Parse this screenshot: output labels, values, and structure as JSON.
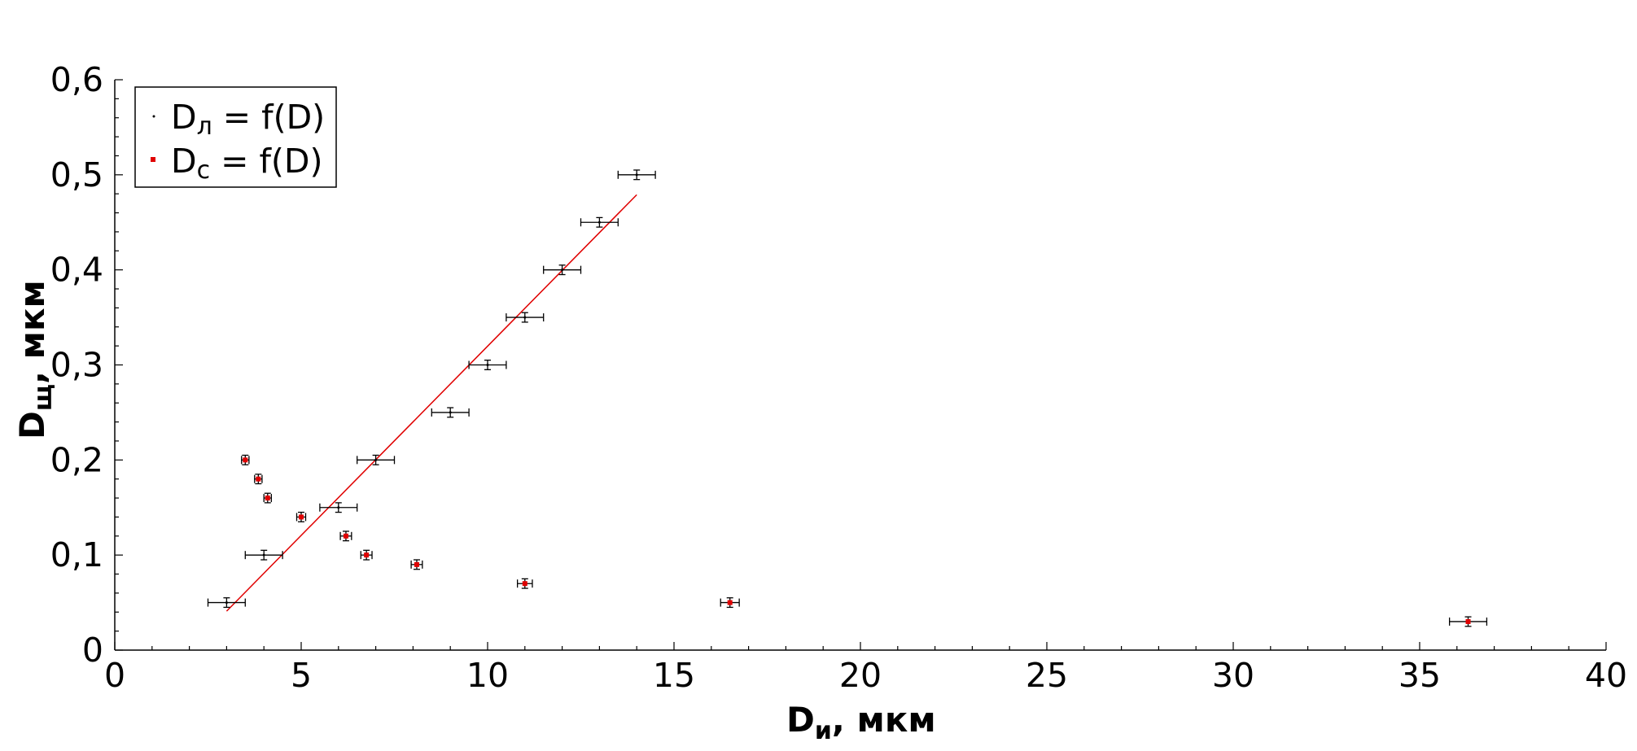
{
  "chart_data": {
    "type": "scatter",
    "xlabel": {
      "main": "D",
      "sub": "и",
      "rest": ", мкм"
    },
    "ylabel": {
      "main": "D",
      "sub": "щ",
      "rest": ", мкм"
    },
    "xlim": [
      0,
      40
    ],
    "ylim": [
      0,
      0.6
    ],
    "x_ticks": [
      0,
      5,
      10,
      15,
      20,
      25,
      30,
      35,
      40
    ],
    "x_tick_labels": [
      "0",
      "5",
      "10",
      "15",
      "20",
      "25",
      "30",
      "35",
      "40"
    ],
    "y_ticks": [
      0,
      0.1,
      0.2,
      0.3,
      0.4,
      0.5,
      0.6
    ],
    "y_tick_labels": [
      "0",
      "0,1",
      "0,2",
      "0,3",
      "0,4",
      "0,5",
      "0,6"
    ],
    "grid": false,
    "legend_position": "top-left",
    "series": [
      {
        "name": "Dл = f(D)",
        "legend": {
          "main": "D",
          "sub": "л",
          "rest": " = f(D)"
        },
        "color": "#000000",
        "points": [
          {
            "x": 3.0,
            "y": 0.05,
            "xerr": 0.5,
            "yerr": 0.005
          },
          {
            "x": 4.0,
            "y": 0.1,
            "xerr": 0.5,
            "yerr": 0.005
          },
          {
            "x": 6.0,
            "y": 0.15,
            "xerr": 0.5,
            "yerr": 0.005
          },
          {
            "x": 7.0,
            "y": 0.2,
            "xerr": 0.5,
            "yerr": 0.005
          },
          {
            "x": 9.0,
            "y": 0.25,
            "xerr": 0.5,
            "yerr": 0.005
          },
          {
            "x": 10.0,
            "y": 0.3,
            "xerr": 0.5,
            "yerr": 0.005
          },
          {
            "x": 11.0,
            "y": 0.35,
            "xerr": 0.5,
            "yerr": 0.005
          },
          {
            "x": 12.0,
            "y": 0.4,
            "xerr": 0.5,
            "yerr": 0.005
          },
          {
            "x": 13.0,
            "y": 0.45,
            "xerr": 0.5,
            "yerr": 0.005
          },
          {
            "x": 14.0,
            "y": 0.5,
            "xerr": 0.5,
            "yerr": 0.005
          }
        ]
      },
      {
        "name": "Dc = f(D)",
        "legend": {
          "main": "D",
          "sub": "c",
          "rest": " = f(D)"
        },
        "color": "#e00000",
        "points": [
          {
            "x": 3.5,
            "y": 0.2,
            "xerr": 0.1,
            "yerr": 0.005
          },
          {
            "x": 3.85,
            "y": 0.18,
            "xerr": 0.1,
            "yerr": 0.005
          },
          {
            "x": 4.1,
            "y": 0.16,
            "xerr": 0.1,
            "yerr": 0.005
          },
          {
            "x": 5.0,
            "y": 0.14,
            "xerr": 0.12,
            "yerr": 0.005
          },
          {
            "x": 6.2,
            "y": 0.12,
            "xerr": 0.15,
            "yerr": 0.005
          },
          {
            "x": 6.75,
            "y": 0.1,
            "xerr": 0.15,
            "yerr": 0.005
          },
          {
            "x": 8.1,
            "y": 0.09,
            "xerr": 0.15,
            "yerr": 0.005
          },
          {
            "x": 11.0,
            "y": 0.07,
            "xerr": 0.2,
            "yerr": 0.005
          },
          {
            "x": 16.5,
            "y": 0.05,
            "xerr": 0.25,
            "yerr": 0.005
          },
          {
            "x": 36.3,
            "y": 0.03,
            "xerr": 0.5,
            "yerr": 0.005
          }
        ]
      }
    ],
    "fit_line": {
      "color": "#e00000",
      "x": [
        3.0,
        14.0
      ],
      "y": [
        0.041,
        0.479
      ]
    }
  }
}
